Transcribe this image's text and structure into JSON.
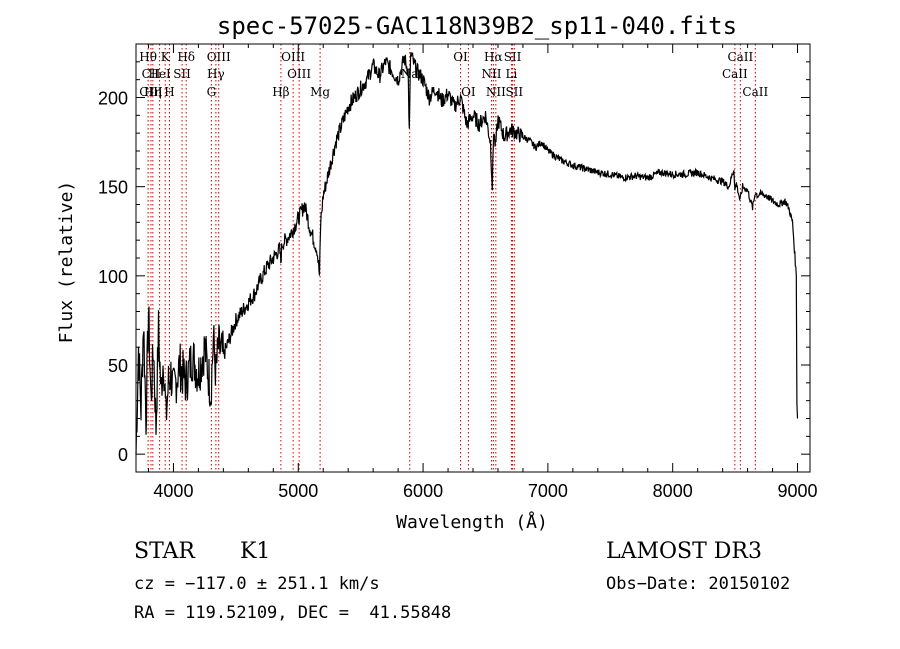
{
  "chart_data": {
    "type": "line",
    "title": "spec-57025-GAC118N39B2_sp11-040.fits",
    "xlabel": "Wavelength (Å)",
    "ylabel": "Flux (relative)",
    "xlim": [
      3700,
      9100
    ],
    "ylim": [
      -10,
      230
    ],
    "x_ticks": [
      4000,
      5000,
      6000,
      7000,
      8000,
      9000
    ],
    "y_ticks": [
      0,
      50,
      100,
      150,
      200
    ],
    "grid": false,
    "series": [
      {
        "name": "flux",
        "color": "#000000",
        "x": [
          3700,
          3720,
          3740,
          3760,
          3780,
          3800,
          3820,
          3840,
          3860,
          3880,
          3900,
          3920,
          3940,
          3960,
          3980,
          4000,
          4050,
          4100,
          4150,
          4200,
          4250,
          4300,
          4320,
          4340,
          4360,
          4400,
          4450,
          4500,
          4550,
          4600,
          4650,
          4700,
          4750,
          4800,
          4850,
          4860,
          4870,
          4900,
          4950,
          5000,
          5050,
          5100,
          5150,
          5170,
          5180,
          5200,
          5250,
          5300,
          5350,
          5400,
          5450,
          5500,
          5550,
          5600,
          5650,
          5700,
          5750,
          5800,
          5850,
          5880,
          5890,
          5900,
          5920,
          5950,
          6000,
          6050,
          6100,
          6150,
          6200,
          6250,
          6300,
          6350,
          6400,
          6450,
          6500,
          6540,
          6555,
          6565,
          6580,
          6600,
          6650,
          6700,
          6750,
          6800,
          6850,
          6900,
          6950,
          7000,
          7100,
          7200,
          7300,
          7400,
          7500,
          7600,
          7700,
          7800,
          7900,
          8000,
          8100,
          8200,
          8300,
          8400,
          8450,
          8490,
          8498,
          8510,
          8540,
          8560,
          8600,
          8640,
          8662,
          8680,
          8700,
          8750,
          8800,
          8850,
          8900,
          8930,
          8960,
          8990,
          8995,
          9000
        ],
        "y": [
          0,
          60,
          25,
          75,
          20,
          80,
          30,
          60,
          15,
          70,
          35,
          55,
          20,
          40,
          45,
          35,
          50,
          40,
          55,
          45,
          60,
          35,
          65,
          45,
          60,
          55,
          65,
          75,
          80,
          85,
          90,
          98,
          105,
          110,
          115,
          108,
          118,
          120,
          125,
          132,
          140,
          125,
          115,
          100,
          130,
          145,
          160,
          175,
          185,
          195,
          200,
          205,
          210,
          218,
          212,
          220,
          215,
          210,
          222,
          215,
          180,
          225,
          220,
          215,
          210,
          200,
          205,
          198,
          202,
          195,
          200,
          185,
          190,
          185,
          190,
          175,
          150,
          182,
          172,
          188,
          178,
          182,
          180,
          178,
          176,
          172,
          175,
          170,
          165,
          162,
          160,
          158,
          157,
          155,
          156,
          155,
          158,
          157,
          157,
          158,
          155,
          153,
          150,
          160,
          148,
          152,
          142,
          150,
          148,
          138,
          147,
          145,
          146,
          145,
          142,
          140,
          142,
          138,
          130,
          100,
          30,
          20
        ]
      }
    ],
    "annotations": [
      {
        "label": "Hθ",
        "x": 3797,
        "row": 1
      },
      {
        "label": "CII",
        "x": 3820,
        "row": 2
      },
      {
        "label": "CIII",
        "x": 3820,
        "row": 3
      },
      {
        "label": "Hη",
        "x": 3835,
        "row": 3
      },
      {
        "label": "K",
        "x": 3934,
        "row": 1
      },
      {
        "label": "HeI",
        "x": 3889,
        "row": 2
      },
      {
        "label": "H",
        "x": 3968,
        "row": 3
      },
      {
        "label": "SII",
        "x": 4069,
        "row": 2
      },
      {
        "label": "Hδ",
        "x": 4102,
        "row": 1
      },
      {
        "label": "OIII",
        "x": 4363,
        "row": 1
      },
      {
        "label": "Hγ",
        "x": 4340,
        "row": 2
      },
      {
        "label": "G",
        "x": 4304,
        "row": 3
      },
      {
        "label": "Hβ",
        "x": 4861,
        "row": 3
      },
      {
        "label": "OIII",
        "x": 4959,
        "row": 1
      },
      {
        "label": "OIII",
        "x": 5007,
        "row": 2
      },
      {
        "label": "Mg",
        "x": 5175,
        "row": 3
      },
      {
        "label": "Na",
        "x": 5893,
        "row": 2
      },
      {
        "label": "OI",
        "x": 6300,
        "row": 1
      },
      {
        "label": "OI",
        "x": 6363,
        "row": 3
      },
      {
        "label": "Hα",
        "x": 6563,
        "row": 1
      },
      {
        "label": "NII",
        "x": 6548,
        "row": 2
      },
      {
        "label": "NII",
        "x": 6583,
        "row": 3
      },
      {
        "label": "SII",
        "x": 6717,
        "row": 1
      },
      {
        "label": "Li",
        "x": 6708,
        "row": 2
      },
      {
        "label": "SII",
        "x": 6731,
        "row": 3
      },
      {
        "label": "CaII",
        "x": 8542,
        "row": 1
      },
      {
        "label": "CaII",
        "x": 8498,
        "row": 2
      },
      {
        "label": "CaII",
        "x": 8662,
        "row": 3
      }
    ],
    "line_markers": [
      3797,
      3820,
      3835,
      3889,
      3934,
      3968,
      4069,
      4102,
      4304,
      4340,
      4363,
      4861,
      4959,
      5007,
      5175,
      5893,
      6300,
      6363,
      6548,
      6563,
      6583,
      6708,
      6717,
      6731,
      8498,
      8542,
      8662
    ],
    "marker_color": "#cc0000"
  },
  "info": {
    "object_class": "STAR",
    "subclass": "K1",
    "survey": "LAMOST DR3",
    "redshift": "cz = −117.0 ± 251.1 km/s",
    "obs_date": "Obs−Date: 20150102",
    "coords": "RA = 119.52109, DEC =  41.55848"
  }
}
